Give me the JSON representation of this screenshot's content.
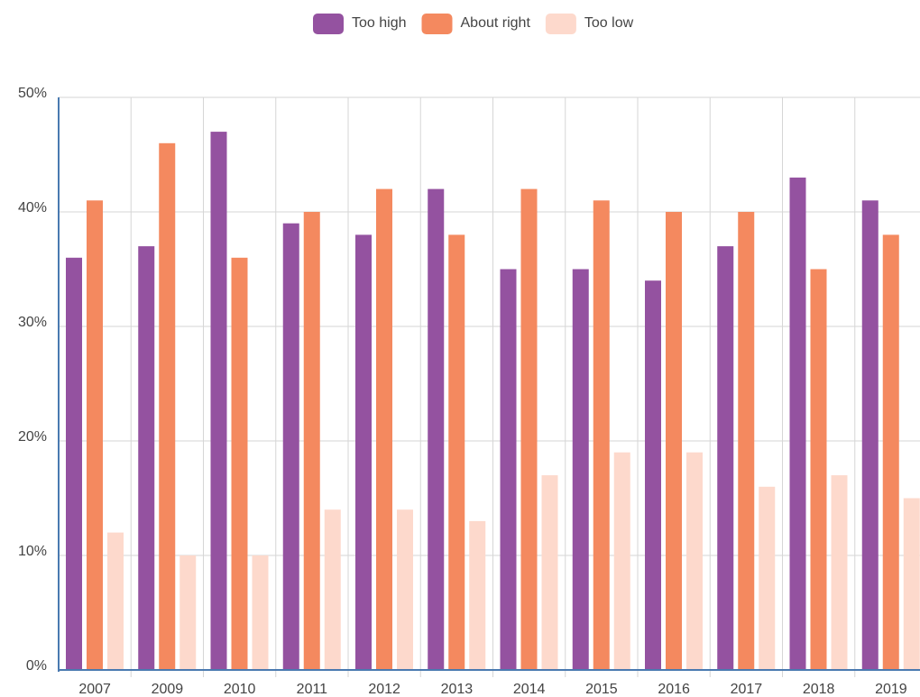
{
  "chart_data": {
    "type": "bar",
    "categories": [
      "2007",
      "2009",
      "2010",
      "2011",
      "2012",
      "2013",
      "2014",
      "2015",
      "2016",
      "2017",
      "2018",
      "2019"
    ],
    "series": [
      {
        "name": "Too high",
        "color": "#9452a0",
        "values": [
          36,
          37,
          47,
          39,
          38,
          42,
          35,
          35,
          34,
          37,
          43,
          41
        ]
      },
      {
        "name": "About right",
        "color": "#f4895f",
        "values": [
          41,
          46,
          36,
          40,
          42,
          38,
          42,
          41,
          40,
          40,
          35,
          38
        ]
      },
      {
        "name": "Too low",
        "color": "#fdd9cc",
        "values": [
          12,
          10,
          10,
          14,
          14,
          13,
          17,
          19,
          19,
          16,
          17,
          15
        ]
      }
    ],
    "ylim": [
      0,
      50
    ],
    "yticks": [
      {
        "value": 0,
        "label": "0%"
      },
      {
        "value": 10,
        "label": "10%"
      },
      {
        "value": 20,
        "label": "20%"
      },
      {
        "value": 30,
        "label": "30%"
      },
      {
        "value": 40,
        "label": "40%"
      },
      {
        "value": 50,
        "label": "50%"
      }
    ],
    "grid": true,
    "legend": "top"
  }
}
